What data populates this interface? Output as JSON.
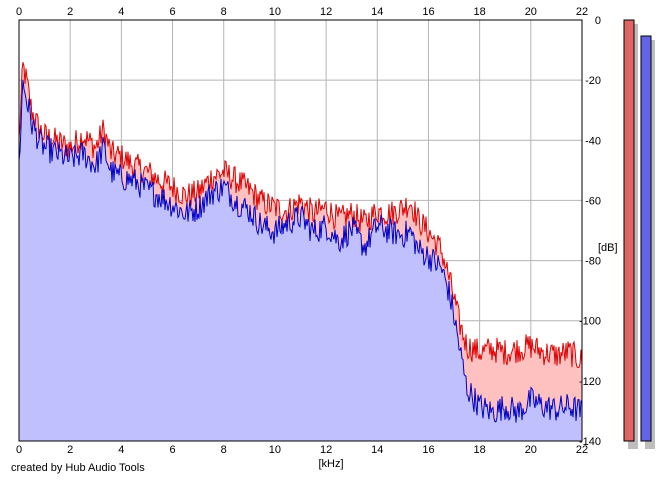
{
  "chart_data": {
    "type": "area",
    "xlabel": "[kHz]",
    "ylabel": "[dB]",
    "xlim": [
      0,
      22
    ],
    "ylim": [
      -140,
      0
    ],
    "x_ticks": [
      0,
      2,
      4,
      6,
      8,
      10,
      12,
      14,
      16,
      18,
      20,
      22
    ],
    "y_ticks": [
      0,
      -20,
      -40,
      -60,
      -80,
      -100,
      -120,
      -140
    ],
    "grid": true,
    "series": [
      {
        "color": "#e00000",
        "fill": "#ffc0c0",
        "x": [
          0.0,
          0.15,
          0.3,
          0.5,
          0.8,
          1.0,
          1.5,
          2.0,
          2.5,
          3.0,
          3.3,
          3.6,
          4.0,
          4.5,
          5.0,
          5.5,
          6.0,
          6.5,
          7.0,
          7.5,
          8.0,
          8.5,
          9.0,
          9.5,
          10.0,
          10.5,
          11.0,
          11.5,
          12.0,
          12.5,
          13.0,
          13.5,
          14.0,
          14.5,
          15.0,
          15.3,
          15.6,
          16.0,
          16.5,
          16.8,
          17.0,
          17.2,
          17.5,
          18.0,
          18.5,
          19.0,
          19.5,
          20.0,
          20.5,
          21.0,
          21.5,
          22.0
        ],
        "values": [
          -40,
          -15,
          -20,
          -30,
          -36,
          -38,
          -40,
          -42,
          -38,
          -42,
          -36,
          -44,
          -45,
          -48,
          -50,
          -53,
          -55,
          -58,
          -57,
          -52,
          -50,
          -53,
          -56,
          -60,
          -62,
          -63,
          -60,
          -64,
          -62,
          -66,
          -64,
          -67,
          -63,
          -64,
          -62,
          -60,
          -66,
          -70,
          -76,
          -85,
          -92,
          -100,
          -108,
          -110,
          -109,
          -110,
          -109,
          -108,
          -110,
          -111,
          -110,
          -113
        ]
      },
      {
        "color": "#0000c8",
        "fill": "#c0c0ff",
        "x": [
          0.0,
          0.15,
          0.3,
          0.5,
          0.8,
          1.0,
          1.5,
          2.0,
          2.5,
          3.0,
          3.3,
          3.6,
          4.0,
          4.5,
          5.0,
          5.5,
          6.0,
          6.5,
          7.0,
          7.5,
          8.0,
          8.5,
          9.0,
          9.5,
          10.0,
          10.5,
          11.0,
          11.5,
          12.0,
          12.5,
          13.0,
          13.5,
          14.0,
          14.5,
          15.0,
          15.3,
          15.6,
          16.0,
          16.5,
          16.8,
          17.0,
          17.2,
          17.5,
          18.0,
          18.5,
          19.0,
          19.5,
          20.0,
          20.5,
          21.0,
          21.5,
          22.0
        ],
        "values": [
          -48,
          -20,
          -26,
          -34,
          -40,
          -42,
          -44,
          -46,
          -44,
          -48,
          -42,
          -50,
          -52,
          -53,
          -56,
          -58,
          -61,
          -64,
          -62,
          -57,
          -55,
          -60,
          -63,
          -68,
          -70,
          -67,
          -65,
          -70,
          -68,
          -73,
          -69,
          -75,
          -68,
          -70,
          -71,
          -70,
          -76,
          -78,
          -82,
          -90,
          -98,
          -108,
          -122,
          -128,
          -130,
          -128,
          -130,
          -126,
          -128,
          -129,
          -128,
          -130
        ]
      }
    ],
    "level_meters": [
      {
        "color": "#e06464",
        "value": 0
      },
      {
        "color": "#6464e6",
        "value": 0
      }
    ]
  },
  "credit": "created by Hub Audio Tools"
}
